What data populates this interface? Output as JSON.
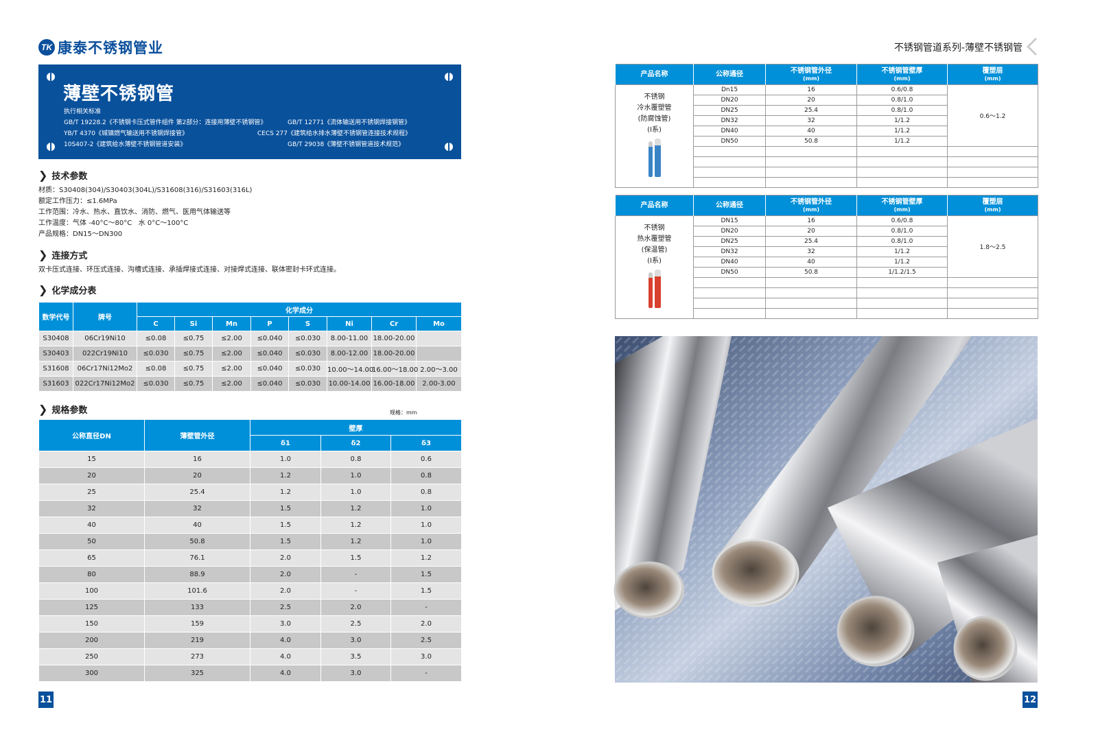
{
  "brand": {
    "logo_mark": "TK",
    "name": "康泰不锈钢管业",
    "accent": "#0a519c",
    "table_header": "#0090d9"
  },
  "banner": {
    "title": "薄壁不锈钢管",
    "standards_label": "执行相关标准",
    "standards": [
      "GB/T 19228.2《不锈钢卡压式管件组件 第2部分：连接用薄壁不锈钢管》",
      "GB/T 12771《流体输送用不锈钢焊接钢管》",
      "YB/T 4370《城镇燃气输送用不锈钢焊接管》",
      "CECS 277《建筑给水排水薄壁不锈钢管连接技术规程》",
      "10S407-2《建筑给水薄壁不锈钢管道安装》",
      "GB/T 29038《薄壁不锈钢管道技术规范》"
    ]
  },
  "tech": {
    "heading": "技术参数",
    "lines": [
      "材质：S30408(304)/S30403(304L)/S31608(316)/S31603(316L)",
      "额定工作压力：≤1.6MPa",
      "工作范围：冷水、热水、直饮水、消防、燃气、医用气体输送等",
      "工作温度：气体 -40°C～80°C   水 0°C～100°C",
      "产品规格：DN15～DN300"
    ]
  },
  "connection": {
    "heading": "连接方式",
    "text": "双卡压式连接、环压式连接、沟槽式连接、承插焊接式连接、对接焊式连接、联体密封卡环式连接。"
  },
  "chem": {
    "heading": "化学成分表",
    "col_code": "数学代号",
    "col_grade": "牌号",
    "group": "化学成分",
    "elements": [
      "C",
      "Si",
      "Mn",
      "P",
      "S",
      "Ni",
      "Cr",
      "Mo"
    ],
    "rows": [
      [
        "S30408",
        "06Cr19Ni10",
        "≤0.08",
        "≤0.75",
        "≤2.00",
        "≤0.040",
        "≤0.030",
        "8.00-11.00",
        "18.00-20.00",
        ""
      ],
      [
        "S30403",
        "022Cr19Ni10",
        "≤0.030",
        "≤0.75",
        "≤2.00",
        "≤0.040",
        "≤0.030",
        "8.00-12.00",
        "18.00-20.00",
        ""
      ],
      [
        "S31608",
        "06Cr17Ni12Mo2",
        "≤0.08",
        "≤0.75",
        "≤2.00",
        "≤0.040",
        "≤0.030",
        "10.00～14.00",
        "16.00～18.00",
        "2.00～3.00"
      ],
      [
        "S31603",
        "022Cr17Ni12Mo2",
        "≤0.030",
        "≤0.75",
        "≤2.00",
        "≤0.040",
        "≤0.030",
        "10.00-14.00",
        "16.00-18.00",
        "2.00-3.00"
      ]
    ]
  },
  "spec": {
    "heading": "规格参数",
    "unit": "规格：mm",
    "col_dn": "公称直径DN",
    "col_od": "薄壁管外径",
    "group": "壁厚",
    "thick": [
      "δ1",
      "δ2",
      "δ3"
    ],
    "rows": [
      [
        "15",
        "16",
        "1.0",
        "0.8",
        "0.6"
      ],
      [
        "20",
        "20",
        "1.2",
        "1.0",
        "0.8"
      ],
      [
        "25",
        "25.4",
        "1.2",
        "1.0",
        "0.8"
      ],
      [
        "32",
        "32",
        "1.5",
        "1.2",
        "1.0"
      ],
      [
        "40",
        "40",
        "1.5",
        "1.2",
        "1.0"
      ],
      [
        "50",
        "50.8",
        "1.5",
        "1.2",
        "1.0"
      ],
      [
        "65",
        "76.1",
        "2.0",
        "1.5",
        "1.2"
      ],
      [
        "80",
        "88.9",
        "2.0",
        "-",
        "1.5"
      ],
      [
        "100",
        "101.6",
        "2.0",
        "-",
        "1.5"
      ],
      [
        "125",
        "133",
        "2.5",
        "2.0",
        "-"
      ],
      [
        "150",
        "159",
        "3.0",
        "2.5",
        "2.0"
      ],
      [
        "200",
        "219",
        "4.0",
        "3.0",
        "2.5"
      ],
      [
        "250",
        "273",
        "4.0",
        "3.5",
        "3.0"
      ],
      [
        "300",
        "325",
        "4.0",
        "3.0",
        "-"
      ]
    ]
  },
  "pages": {
    "left": "11",
    "right": "12"
  },
  "right_header": "不锈钢管道系列-薄壁不锈钢管",
  "product_headers": {
    "name": "产品名称",
    "dn": "公称通径",
    "od": "不锈钢管外径",
    "wall": "不锈钢管壁厚",
    "cover": "覆塑层",
    "unit": "(mm)"
  },
  "products": [
    {
      "name_lines": [
        "不锈钢",
        "冷水覆塑管",
        "(防腐蚀管)",
        "(I系)"
      ],
      "pipe_color": "#3a84c6",
      "cover": "0.6～1.2",
      "rows": [
        [
          "Dn15",
          "16",
          "0.6/0.8"
        ],
        [
          "DN20",
          "20",
          "0.8/1.0"
        ],
        [
          "DN25",
          "25.4",
          "0.8/1.0"
        ],
        [
          "DN32",
          "32",
          "1/1.2"
        ],
        [
          "DN40",
          "40",
          "1/1.2"
        ],
        [
          "DN50",
          "50.8",
          "1/1.2"
        ]
      ]
    },
    {
      "name_lines": [
        "不锈钢",
        "热水覆塑管",
        "(保温管)",
        "(I系)"
      ],
      "pipe_color": "#d9412e",
      "cover": "1.8～2.5",
      "rows": [
        [
          "DN15",
          "16",
          "0.6/0.8"
        ],
        [
          "DN20",
          "20",
          "0.8/1.0"
        ],
        [
          "DN25",
          "25.4",
          "0.8/1.0"
        ],
        [
          "DN32",
          "32",
          "1/1.2"
        ],
        [
          "DN40",
          "40",
          "1/1.2"
        ],
        [
          "DN50",
          "50.8",
          "1/1.2/1.5"
        ]
      ]
    }
  ]
}
